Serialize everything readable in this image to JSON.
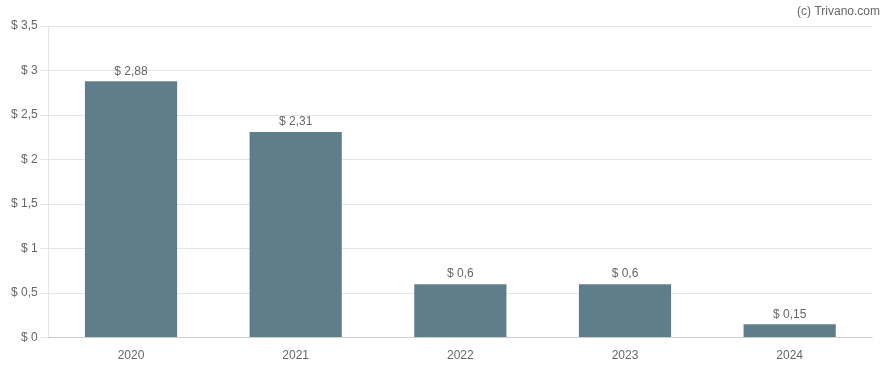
{
  "chart_data": {
    "type": "bar",
    "categories": [
      "2020",
      "2021",
      "2022",
      "2023",
      "2024"
    ],
    "values": [
      2.88,
      2.31,
      0.6,
      0.6,
      0.15
    ],
    "data_labels": true,
    "value_labels": [
      "$ 2,88",
      "$ 2,31",
      "$ 0,6",
      "$ 0,6",
      "$ 0,15"
    ],
    "color": "#607d8b",
    "ylim": [
      0,
      3.5
    ],
    "yticks": [
      {
        "value": 0.0,
        "label": "$ 0"
      },
      {
        "value": 0.5,
        "label": "$ 0,5"
      },
      {
        "value": 1.0,
        "label": "$ 1"
      },
      {
        "value": 1.5,
        "label": "$ 1,5"
      },
      {
        "value": 2.0,
        "label": "$ 2"
      },
      {
        "value": 2.5,
        "label": "$ 2,5"
      },
      {
        "value": 3.0,
        "label": "$ 3"
      },
      {
        "value": 3.5,
        "label": "$ 3,5"
      }
    ],
    "grid": true,
    "annotations": [
      "(c) Trivano.com"
    ]
  }
}
